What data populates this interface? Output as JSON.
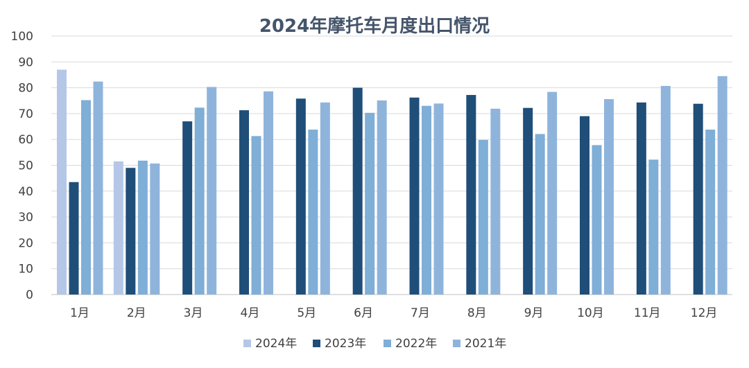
{
  "chart_data": {
    "type": "bar",
    "title": "2024年摩托车月度出口情况",
    "xlabel": "",
    "ylabel": "",
    "ylim": [
      0,
      100
    ],
    "yticks": [
      0,
      10,
      20,
      30,
      40,
      50,
      60,
      70,
      80,
      90,
      100
    ],
    "grid": true,
    "legend_position": "bottom",
    "categories": [
      "1月",
      "2月",
      "3月",
      "4月",
      "5月",
      "6月",
      "7月",
      "8月",
      "9月",
      "10月",
      "11月",
      "12月"
    ],
    "series": [
      {
        "name": "2024年",
        "color": "#b4c7e7",
        "values": [
          87,
          51.5,
          null,
          null,
          null,
          null,
          null,
          null,
          null,
          null,
          null,
          null
        ]
      },
      {
        "name": "2023年",
        "color": "#1f4e79",
        "values": [
          43.5,
          49,
          67,
          71.3,
          75.8,
          80,
          76.2,
          77.2,
          72.2,
          69,
          74.3,
          73.8
        ]
      },
      {
        "name": "2022年",
        "color": "#7faed6",
        "values": [
          75.2,
          51.8,
          72.3,
          61.3,
          63.8,
          70.3,
          73,
          59.8,
          62.1,
          57.8,
          52.2,
          63.8
        ]
      },
      {
        "name": "2021年",
        "color": "#8fb4dc",
        "values": [
          82.4,
          50.7,
          80.3,
          78.6,
          74.3,
          75.1,
          73.9,
          71.9,
          78.4,
          75.6,
          80.7,
          84.5
        ]
      }
    ]
  }
}
